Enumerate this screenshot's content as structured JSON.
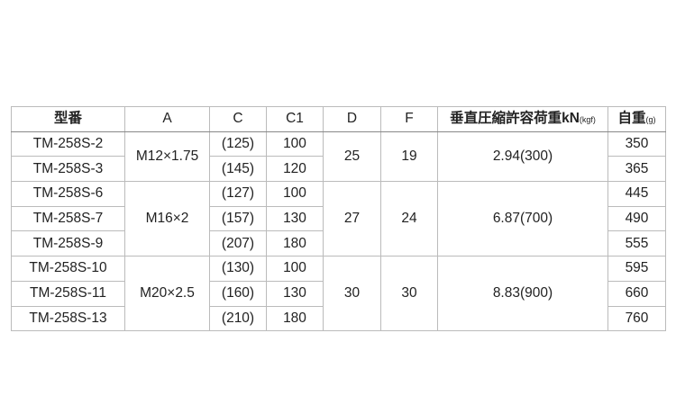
{
  "table": {
    "headers": {
      "model": "型番",
      "a": "A",
      "c": "C",
      "c1": "C1",
      "d": "D",
      "f": "F",
      "load": "垂直圧縮許容荷重kN",
      "load_unit": "(kgf)",
      "weight": "自重",
      "weight_unit": "(g)"
    },
    "groups": [
      {
        "a": "M12×1.75",
        "d": "25",
        "f": "19",
        "load": "2.94(300)",
        "rows": [
          {
            "model": "TM-258S-2",
            "c": "(125)",
            "c1": "100",
            "weight": "350"
          },
          {
            "model": "TM-258S-3",
            "c": "(145)",
            "c1": "120",
            "weight": "365"
          }
        ]
      },
      {
        "a": "M16×2",
        "d": "27",
        "f": "24",
        "load": "6.87(700)",
        "rows": [
          {
            "model": "TM-258S-6",
            "c": "(127)",
            "c1": "100",
            "weight": "445"
          },
          {
            "model": "TM-258S-7",
            "c": "(157)",
            "c1": "130",
            "weight": "490"
          },
          {
            "model": "TM-258S-9",
            "c": "(207)",
            "c1": "180",
            "weight": "555"
          }
        ]
      },
      {
        "a": "M20×2.5",
        "d": "30",
        "f": "30",
        "load": "8.83(900)",
        "rows": [
          {
            "model": "TM-258S-10",
            "c": "(130)",
            "c1": "100",
            "weight": "595"
          },
          {
            "model": "TM-258S-11",
            "c": "(160)",
            "c1": "130",
            "weight": "660"
          },
          {
            "model": "TM-258S-13",
            "c": "(210)",
            "c1": "180",
            "weight": "760"
          }
        ]
      }
    ]
  }
}
